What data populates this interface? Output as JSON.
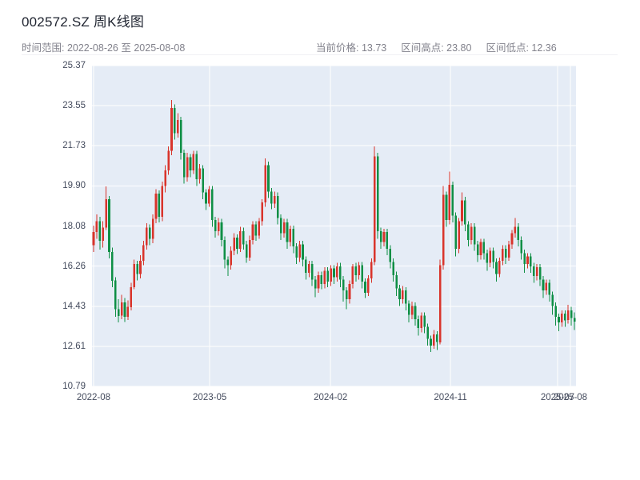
{
  "header": {
    "title": "002572.SZ 周K线图",
    "range_label": "时间范围: 2022-08-26 至 2025-08-08",
    "stats": [
      "当前价格: 13.73",
      "区间高点: 23.80",
      "区间低点: 12.36"
    ]
  },
  "chart_data": {
    "type": "candlestick",
    "title": "002572.SZ 周K线图",
    "symbol": "002572.SZ",
    "interval": "weekly",
    "date_range": {
      "start": "2022-08-26",
      "end": "2025-08-08"
    },
    "current_price": 13.73,
    "range_high": 23.8,
    "range_low": 12.36,
    "y_min": 10.79,
    "y_max": 25.37,
    "y_ticks": [
      "10.79",
      "12.61",
      "14.43",
      "16.26",
      "18.08",
      "19.90",
      "21.73",
      "23.55",
      "25.37"
    ],
    "x_ticks": [
      {
        "label": "2022-08",
        "index": 0
      },
      {
        "label": "2023-05",
        "index": 37.2
      },
      {
        "label": "2024-02",
        "index": 75.9
      },
      {
        "label": "2024-11",
        "index": 114.3
      },
      {
        "label": "2025-07",
        "index": 148.6
      },
      {
        "label": "2025-08",
        "index": 152.7
      }
    ],
    "theme": {
      "up_color": "#d9342b",
      "down_color": "#0f8f45",
      "grid_color": "#ffffff",
      "plot_bg": "#e5ecf6",
      "axis_text": "#454c5e"
    },
    "candles": [
      [
        17.2,
        18.1,
        16.9,
        17.8
      ],
      [
        17.8,
        18.6,
        17.5,
        18.3
      ],
      [
        18.3,
        18.5,
        17.0,
        17.4
      ],
      [
        17.4,
        18.3,
        17.1,
        18.0
      ],
      [
        18.0,
        19.88,
        17.9,
        19.3
      ],
      [
        19.3,
        19.45,
        16.6,
        16.9
      ],
      [
        16.9,
        17.1,
        15.3,
        15.6
      ],
      [
        15.6,
        15.75,
        13.95,
        14.3
      ],
      [
        14.3,
        14.75,
        13.7,
        14.0
      ],
      [
        14.0,
        14.95,
        13.85,
        14.6
      ],
      [
        14.6,
        14.8,
        13.72,
        13.95
      ],
      [
        13.95,
        14.7,
        13.8,
        14.4
      ],
      [
        14.4,
        15.5,
        14.25,
        15.3
      ],
      [
        15.3,
        16.55,
        15.2,
        16.35
      ],
      [
        16.35,
        16.5,
        15.6,
        15.9
      ],
      [
        15.9,
        16.75,
        15.7,
        16.5
      ],
      [
        16.5,
        17.4,
        16.3,
        17.2
      ],
      [
        17.2,
        18.2,
        17.0,
        18.0
      ],
      [
        18.0,
        18.15,
        17.2,
        17.5
      ],
      [
        17.5,
        18.6,
        17.3,
        18.4
      ],
      [
        18.4,
        19.75,
        18.2,
        19.55
      ],
      [
        19.55,
        19.7,
        18.25,
        18.5
      ],
      [
        18.5,
        20.1,
        18.3,
        19.9
      ],
      [
        19.9,
        20.85,
        19.6,
        20.6
      ],
      [
        20.6,
        21.7,
        20.4,
        21.5
      ],
      [
        21.5,
        23.8,
        21.3,
        23.45
      ],
      [
        23.45,
        23.6,
        22.0,
        22.3
      ],
      [
        22.3,
        23.2,
        22.1,
        22.9
      ],
      [
        22.9,
        23.05,
        21.1,
        21.4
      ],
      [
        21.4,
        21.55,
        20.0,
        20.3
      ],
      [
        20.3,
        21.4,
        20.1,
        21.2
      ],
      [
        21.2,
        21.35,
        20.3,
        20.6
      ],
      [
        20.6,
        21.5,
        20.45,
        21.35
      ],
      [
        21.35,
        21.5,
        19.9,
        20.2
      ],
      [
        20.2,
        20.9,
        20.0,
        20.7
      ],
      [
        20.7,
        20.85,
        19.3,
        19.6
      ],
      [
        19.6,
        19.75,
        18.8,
        19.1
      ],
      [
        19.1,
        19.9,
        18.95,
        19.75
      ],
      [
        19.75,
        19.9,
        18.05,
        18.35
      ],
      [
        18.35,
        18.5,
        17.55,
        17.85
      ],
      [
        17.85,
        18.45,
        17.65,
        18.25
      ],
      [
        18.25,
        18.4,
        17.15,
        17.45
      ],
      [
        17.45,
        17.6,
        16.15,
        16.55
      ],
      [
        16.55,
        16.7,
        15.8,
        16.3
      ],
      [
        16.3,
        17.15,
        16.1,
        16.95
      ],
      [
        16.95,
        17.75,
        16.75,
        17.55
      ],
      [
        17.55,
        17.7,
        16.8,
        17.05
      ],
      [
        17.05,
        18.05,
        16.9,
        17.85
      ],
      [
        17.85,
        18.0,
        17.0,
        17.25
      ],
      [
        17.25,
        17.4,
        16.4,
        16.65
      ],
      [
        16.65,
        17.65,
        16.5,
        17.45
      ],
      [
        17.45,
        18.3,
        17.25,
        18.15
      ],
      [
        18.15,
        18.3,
        17.4,
        17.65
      ],
      [
        17.65,
        18.45,
        17.5,
        18.3
      ],
      [
        18.3,
        19.3,
        18.1,
        19.15
      ],
      [
        19.15,
        21.15,
        18.95,
        20.85
      ],
      [
        20.85,
        21.0,
        19.35,
        19.65
      ],
      [
        19.65,
        19.8,
        18.85,
        19.1
      ],
      [
        19.1,
        19.65,
        18.9,
        19.45
      ],
      [
        19.45,
        19.6,
        18.15,
        18.45
      ],
      [
        18.45,
        18.6,
        17.45,
        17.75
      ],
      [
        17.75,
        18.4,
        17.55,
        18.25
      ],
      [
        18.25,
        18.4,
        17.05,
        17.35
      ],
      [
        17.35,
        18.1,
        17.15,
        17.95
      ],
      [
        17.95,
        18.1,
        16.85,
        17.15
      ],
      [
        17.15,
        17.3,
        16.35,
        16.65
      ],
      [
        16.65,
        17.4,
        16.45,
        17.25
      ],
      [
        17.25,
        17.4,
        16.25,
        16.55
      ],
      [
        16.55,
        16.7,
        15.65,
        15.95
      ],
      [
        15.95,
        16.5,
        15.75,
        16.35
      ],
      [
        16.35,
        16.5,
        15.35,
        15.65
      ],
      [
        15.65,
        15.8,
        14.85,
        15.25
      ],
      [
        15.25,
        16.0,
        15.05,
        15.85
      ],
      [
        15.85,
        16.0,
        15.2,
        15.45
      ],
      [
        15.45,
        16.2,
        15.25,
        16.05
      ],
      [
        16.05,
        16.2,
        15.3,
        15.55
      ],
      [
        15.55,
        16.3,
        15.35,
        16.15
      ],
      [
        16.15,
        16.3,
        15.45,
        15.75
      ],
      [
        15.75,
        16.4,
        15.55,
        16.25
      ],
      [
        16.25,
        16.4,
        15.3,
        15.65
      ],
      [
        15.65,
        15.8,
        14.65,
        15.15
      ],
      [
        15.15,
        15.3,
        14.3,
        14.75
      ],
      [
        14.75,
        15.6,
        14.55,
        15.45
      ],
      [
        15.45,
        16.35,
        15.25,
        16.25
      ],
      [
        16.25,
        16.4,
        15.55,
        15.85
      ],
      [
        15.85,
        16.45,
        15.65,
        16.3
      ],
      [
        16.3,
        16.45,
        15.25,
        15.55
      ],
      [
        15.55,
        15.7,
        14.8,
        15.05
      ],
      [
        15.05,
        15.85,
        14.9,
        15.7
      ],
      [
        15.7,
        16.6,
        15.5,
        16.45
      ],
      [
        16.45,
        21.7,
        16.3,
        21.25
      ],
      [
        21.25,
        21.4,
        17.5,
        17.85
      ],
      [
        17.85,
        18.0,
        17.05,
        17.35
      ],
      [
        17.35,
        17.95,
        17.15,
        17.8
      ],
      [
        17.8,
        17.95,
        16.75,
        17.05
      ],
      [
        17.05,
        17.2,
        16.15,
        16.45
      ],
      [
        16.45,
        16.6,
        15.55,
        15.85
      ],
      [
        15.85,
        16.0,
        14.9,
        15.25
      ],
      [
        15.25,
        15.4,
        14.45,
        14.75
      ],
      [
        14.75,
        15.35,
        14.55,
        15.15
      ],
      [
        15.15,
        15.3,
        14.25,
        14.55
      ],
      [
        14.55,
        14.7,
        13.7,
        14.05
      ],
      [
        14.05,
        14.65,
        13.85,
        14.45
      ],
      [
        14.45,
        14.6,
        13.55,
        13.85
      ],
      [
        13.85,
        14.0,
        13.1,
        13.45
      ],
      [
        13.45,
        14.15,
        13.25,
        14.0
      ],
      [
        14.0,
        14.15,
        13.2,
        13.5
      ],
      [
        13.5,
        13.65,
        12.65,
        12.95
      ],
      [
        12.95,
        13.1,
        12.36,
        12.65
      ],
      [
        12.65,
        13.35,
        12.5,
        13.15
      ],
      [
        13.15,
        13.3,
        12.45,
        12.8
      ],
      [
        12.8,
        16.55,
        12.7,
        16.3
      ],
      [
        16.3,
        19.9,
        16.1,
        19.5
      ],
      [
        19.5,
        19.65,
        18.05,
        18.35
      ],
      [
        18.35,
        20.55,
        18.15,
        19.95
      ],
      [
        19.95,
        20.1,
        18.25,
        18.55
      ],
      [
        18.55,
        18.7,
        16.7,
        17.05
      ],
      [
        17.05,
        18.45,
        16.85,
        18.3
      ],
      [
        18.3,
        19.6,
        18.1,
        19.25
      ],
      [
        19.25,
        19.4,
        17.85,
        18.15
      ],
      [
        18.15,
        18.3,
        17.15,
        17.45
      ],
      [
        17.45,
        18.2,
        17.25,
        18.05
      ],
      [
        18.05,
        18.2,
        16.95,
        17.25
      ],
      [
        17.25,
        17.4,
        16.45,
        16.75
      ],
      [
        16.75,
        17.5,
        16.55,
        17.35
      ],
      [
        17.35,
        17.5,
        16.55,
        16.85
      ],
      [
        16.85,
        17.0,
        16.05,
        16.4
      ],
      [
        16.4,
        17.1,
        16.2,
        16.95
      ],
      [
        16.95,
        17.1,
        16.15,
        16.45
      ],
      [
        16.45,
        16.6,
        15.55,
        15.9
      ],
      [
        15.9,
        16.65,
        15.75,
        16.5
      ],
      [
        16.5,
        17.2,
        16.3,
        17.05
      ],
      [
        17.05,
        17.2,
        16.35,
        16.65
      ],
      [
        16.65,
        17.4,
        16.5,
        17.25
      ],
      [
        17.25,
        17.9,
        17.05,
        17.75
      ],
      [
        17.75,
        18.45,
        17.55,
        18.05
      ],
      [
        18.05,
        18.2,
        17.15,
        17.45
      ],
      [
        17.45,
        17.6,
        16.55,
        16.85
      ],
      [
        16.85,
        17.0,
        15.95,
        16.35
      ],
      [
        16.35,
        16.85,
        16.15,
        16.7
      ],
      [
        16.7,
        16.85,
        15.95,
        16.25
      ],
      [
        16.25,
        16.4,
        15.5,
        15.8
      ],
      [
        15.8,
        16.35,
        15.6,
        16.2
      ],
      [
        16.2,
        16.35,
        15.35,
        15.65
      ],
      [
        15.65,
        15.8,
        14.8,
        15.15
      ],
      [
        15.15,
        15.65,
        14.95,
        15.5
      ],
      [
        15.5,
        15.65,
        14.65,
        14.95
      ],
      [
        14.95,
        15.1,
        14.05,
        14.45
      ],
      [
        14.45,
        14.6,
        13.55,
        13.95
      ],
      [
        13.95,
        14.1,
        13.3,
        13.7
      ],
      [
        13.7,
        14.25,
        13.5,
        14.1
      ],
      [
        14.1,
        14.25,
        13.5,
        13.8
      ],
      [
        13.8,
        14.5,
        13.65,
        14.25
      ],
      [
        14.25,
        14.4,
        13.55,
        13.9
      ],
      [
        13.9,
        14.15,
        13.35,
        13.73
      ]
    ]
  }
}
